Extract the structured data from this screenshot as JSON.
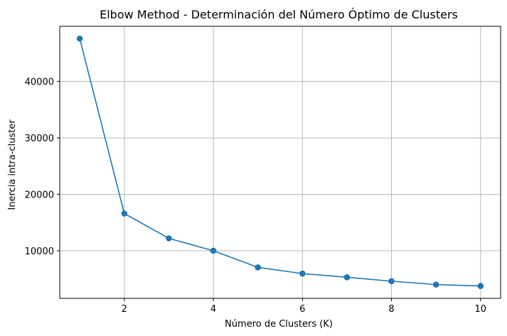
{
  "chart_data": {
    "type": "line",
    "title": "Elbow Method - Determinación del Número Óptimo de Clusters",
    "xlabel": "Número de Clusters (K)",
    "ylabel": "Inercia intra-cluster",
    "x": [
      1,
      2,
      3,
      4,
      5,
      6,
      7,
      8,
      9,
      10
    ],
    "series": [
      {
        "values": [
          47600,
          16600,
          12200,
          10000,
          7050,
          5950,
          5300,
          4600,
          4000,
          3750
        ],
        "color": "#1f77b4",
        "marker": "circle"
      }
    ],
    "xticks": [
      2,
      4,
      6,
      8,
      10
    ],
    "yticks": [
      10000,
      20000,
      30000,
      40000
    ],
    "xlim": [
      0.55,
      10.45
    ],
    "ylim": [
      1560,
      49790
    ],
    "grid": true
  }
}
